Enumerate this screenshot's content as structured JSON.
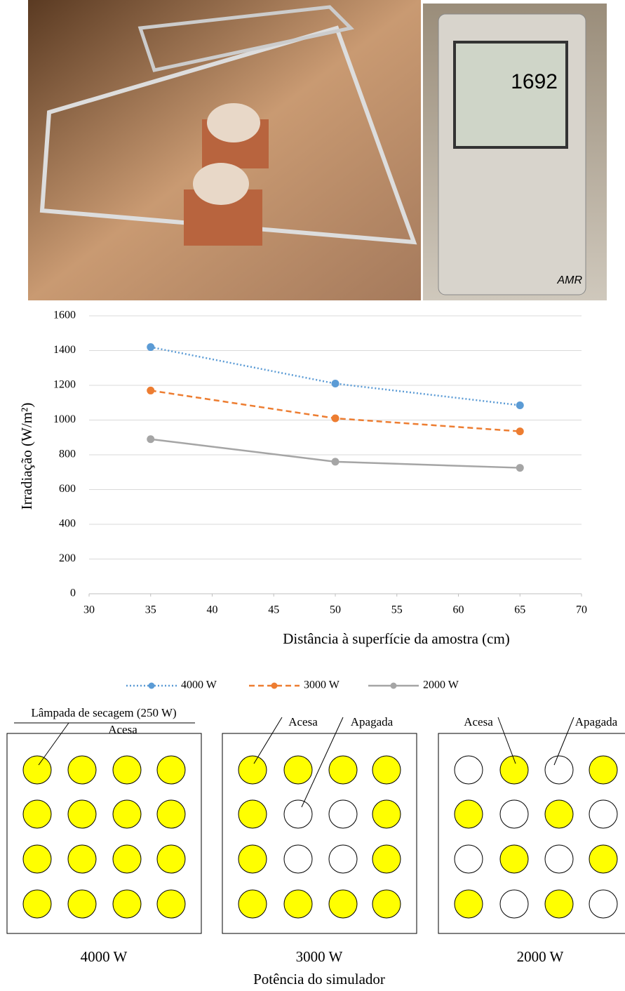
{
  "photos": {
    "meter_reading": "1692",
    "meter_brand": "AMR"
  },
  "chart_data": {
    "type": "line",
    "x_label": "Distância à superfície da amostra (cm)",
    "y_label": "Irradiação (W/m²)",
    "x": [
      35,
      50,
      65
    ],
    "series": [
      {
        "name": "4000 W",
        "color": "#5b9bd5",
        "dash": "dotted",
        "values": [
          1420,
          1210,
          1085
        ]
      },
      {
        "name": "3000 W",
        "color": "#ed7d31",
        "dash": "dashed",
        "values": [
          1170,
          1010,
          935
        ]
      },
      {
        "name": "2000 W",
        "color": "#a5a5a5",
        "dash": "solid",
        "values": [
          890,
          760,
          725
        ]
      }
    ],
    "xlim": [
      30,
      70
    ],
    "xticks": [
      30,
      35,
      40,
      45,
      50,
      55,
      60,
      65,
      70
    ],
    "ylim": [
      0,
      1600
    ],
    "yticks": [
      0,
      200,
      400,
      600,
      800,
      1000,
      1200,
      1400,
      1600
    ],
    "grid": true,
    "legend": "bottom"
  },
  "diagram": {
    "lamp_label": "Lâmpada de secagem (250 W)",
    "on_label": "Acesa",
    "off_label": "Apagada",
    "panels": [
      "4000 W",
      "3000 W",
      "2000 W"
    ],
    "caption": "Potência do simulador"
  }
}
